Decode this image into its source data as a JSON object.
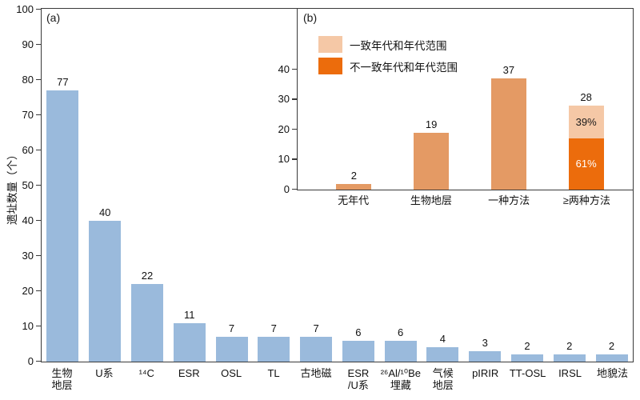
{
  "chart_data": [
    {
      "type": "bar",
      "panel_label": "(a)",
      "ylabel": "遗址数量（个）",
      "xlabel": "",
      "ylim": [
        0,
        100
      ],
      "yticks": [
        0,
        10,
        20,
        30,
        40,
        50,
        60,
        70,
        80,
        90,
        100
      ],
      "categories": [
        "生物\n地层",
        "U系",
        "¹⁴C",
        "ESR",
        "OSL",
        "TL",
        "古地磁",
        "ESR\n/U系",
        "²⁶Al/¹⁰Be\n埋藏",
        "气候\n地层",
        "pIRIR",
        "TT-OSL",
        "IRSL",
        "地貌法"
      ],
      "values": [
        77,
        40,
        22,
        11,
        7,
        7,
        7,
        6,
        6,
        4,
        3,
        2,
        2,
        2
      ],
      "bar_color": "#9ABADC",
      "grid": false,
      "legend_position": "none"
    },
    {
      "type": "bar",
      "panel_label": "(b)",
      "ylabel": "",
      "xlabel": "",
      "ylim": [
        0,
        60
      ],
      "yticks": [
        0,
        10,
        20,
        30,
        40
      ],
      "categories": [
        "无年代",
        "生物地层",
        "一种方法",
        "≥两种方法"
      ],
      "values": [
        2,
        19,
        37,
        28
      ],
      "bar_color": "#E49A64",
      "grid": false,
      "legend_position": "upper-left-inside",
      "legend": [
        {
          "label": "一致年代和年代范围",
          "color": "#F5C8A6"
        },
        {
          "label": "不一致年代和年代范围",
          "color": "#EC6C0C"
        }
      ],
      "stacked_last_bar": {
        "category": "≥两种方法",
        "total": 28,
        "segments_bottom_up": [
          {
            "label": "61%",
            "fraction": 0.61,
            "color": "#EC6C0C",
            "label_color": "#FFFFFF"
          },
          {
            "label": "39%",
            "fraction": 0.39,
            "color": "#F5C8A6",
            "label_color": "#1A1A1A"
          }
        ]
      }
    }
  ],
  "style": {
    "axis_color": "#3a3a3a",
    "text_color": "#111111",
    "background": "#ffffff"
  }
}
